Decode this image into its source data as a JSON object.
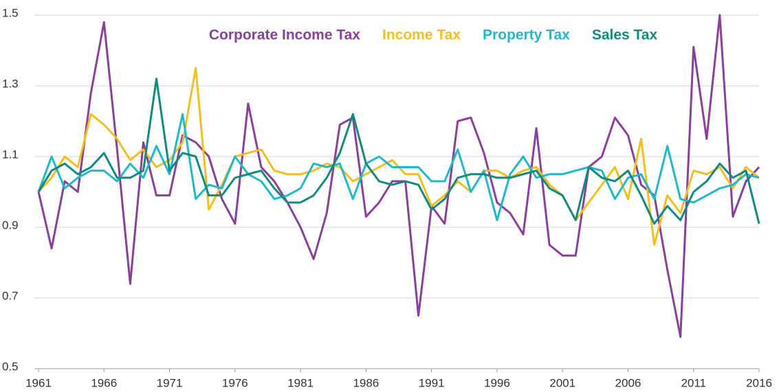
{
  "chart_data": {
    "type": "line",
    "x": [
      1961,
      1962,
      1963,
      1964,
      1965,
      1966,
      1967,
      1968,
      1969,
      1970,
      1971,
      1972,
      1973,
      1974,
      1975,
      1976,
      1977,
      1978,
      1979,
      1980,
      1981,
      1982,
      1983,
      1984,
      1985,
      1986,
      1987,
      1988,
      1989,
      1990,
      1991,
      1992,
      1993,
      1994,
      1995,
      1996,
      1997,
      1998,
      1999,
      2000,
      2001,
      2002,
      2003,
      2004,
      2005,
      2006,
      2007,
      2008,
      2009,
      2010,
      2011,
      2012,
      2013,
      2014,
      2015,
      2016
    ],
    "series": [
      {
        "name": "Corporate Income Tax",
        "color": "#8b3f9d",
        "values": [
          1.0,
          0.84,
          1.03,
          1.0,
          1.28,
          1.48,
          1.12,
          0.74,
          1.14,
          0.99,
          0.99,
          1.16,
          1.14,
          1.1,
          0.98,
          0.91,
          1.25,
          1.07,
          1.03,
          0.97,
          0.9,
          0.81,
          0.94,
          1.19,
          1.21,
          0.93,
          0.97,
          1.03,
          1.03,
          0.65,
          0.96,
          0.91,
          1.2,
          1.21,
          1.11,
          0.97,
          0.94,
          0.88,
          1.18,
          0.85,
          0.82,
          0.82,
          1.07,
          1.1,
          1.21,
          1.16,
          1.02,
          0.99,
          0.78,
          0.59,
          1.41,
          1.15,
          1.5,
          0.93,
          1.03,
          1.07
        ]
      },
      {
        "name": "Income Tax",
        "color": "#f6bd1e",
        "values": [
          1.0,
          1.04,
          1.1,
          1.07,
          1.22,
          1.19,
          1.15,
          1.09,
          1.12,
          1.07,
          1.09,
          1.14,
          1.35,
          0.95,
          1.02,
          1.1,
          1.11,
          1.12,
          1.06,
          1.05,
          1.05,
          1.06,
          1.08,
          1.07,
          1.03,
          1.05,
          1.07,
          1.09,
          1.05,
          1.05,
          0.96,
          0.99,
          1.03,
          1.0,
          1.06,
          1.06,
          1.04,
          1.06,
          1.07,
          1.02,
          0.99,
          0.92,
          0.97,
          1.02,
          1.07,
          0.98,
          1.15,
          0.85,
          0.99,
          0.94,
          1.06,
          1.05,
          1.07,
          1.01,
          1.07,
          1.04
        ]
      },
      {
        "name": "Property Tax",
        "color": "#1fb8cd",
        "values": [
          1.0,
          1.1,
          1.01,
          1.04,
          1.06,
          1.06,
          1.03,
          1.08,
          1.04,
          1.13,
          1.05,
          1.22,
          0.98,
          1.02,
          1.01,
          1.1,
          1.05,
          1.03,
          0.98,
          0.99,
          1.01,
          1.08,
          1.07,
          1.08,
          0.98,
          1.08,
          1.1,
          1.07,
          1.07,
          1.07,
          1.03,
          1.03,
          1.12,
          1.0,
          1.06,
          0.92,
          1.05,
          1.1,
          1.04,
          1.05,
          1.05,
          1.06,
          1.07,
          1.06,
          0.98,
          1.04,
          1.05,
          0.98,
          1.13,
          0.98,
          0.97,
          0.99,
          1.01,
          1.02,
          1.05,
          1.04
        ]
      },
      {
        "name": "Sales Tax",
        "color": "#128b7f",
        "values": [
          1.0,
          1.06,
          1.08,
          1.05,
          1.07,
          1.11,
          1.04,
          1.04,
          1.06,
          1.32,
          1.06,
          1.11,
          1.1,
          0.99,
          0.99,
          1.04,
          1.05,
          1.06,
          1.01,
          0.97,
          0.97,
          0.99,
          1.04,
          1.11,
          1.22,
          1.08,
          1.03,
          1.02,
          1.03,
          1.02,
          0.95,
          0.98,
          1.04,
          1.05,
          1.05,
          1.04,
          1.04,
          1.05,
          1.06,
          1.01,
          0.99,
          0.92,
          1.07,
          1.04,
          1.03,
          1.06,
          0.99,
          0.91,
          0.96,
          0.92,
          1.0,
          1.03,
          1.08,
          1.04,
          1.06,
          0.91
        ]
      }
    ],
    "xlim": [
      1961,
      2016
    ],
    "xticks": [
      1961,
      1966,
      1971,
      1976,
      1981,
      1986,
      1991,
      1996,
      2001,
      2006,
      2011,
      2016
    ],
    "ylim": [
      0.5,
      1.5
    ],
    "yticks": [
      0.5,
      0.7,
      0.9,
      1.1,
      1.3,
      1.5
    ],
    "grid": true,
    "legend": "top"
  }
}
